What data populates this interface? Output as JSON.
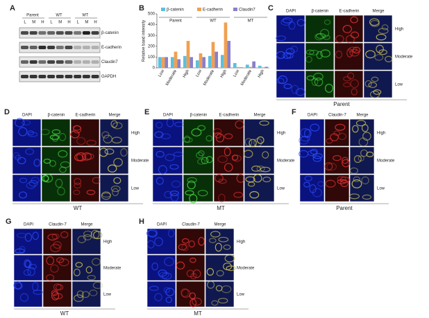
{
  "blot": {
    "label": "A",
    "groups": [
      "Parent",
      "WT",
      "MT"
    ],
    "lanes": [
      "L",
      "M",
      "H",
      "L",
      "M",
      "H",
      "L",
      "M",
      "H"
    ],
    "rows": [
      "β-catenin",
      "E-cadherin",
      "Claudin7",
      "GAPDH"
    ]
  },
  "chart_data": {
    "type": "bar",
    "label": "B",
    "y_label": "Relative band intensity",
    "groups": [
      "Parent",
      "WT",
      "MT"
    ],
    "categories": [
      "Low",
      "Moderate",
      "High",
      "Low",
      "Moderate",
      "High",
      "Low",
      "Moderate",
      "High"
    ],
    "series": [
      {
        "name": "β-catenin",
        "color": "#5bc0de",
        "values": [
          100,
          100,
          110,
          70,
          110,
          120,
          45,
          30,
          20
        ]
      },
      {
        "name": "E-cadherin",
        "color": "#f0a050",
        "values": [
          100,
          150,
          250,
          135,
          240,
          420,
          8,
          10,
          5
        ]
      },
      {
        "name": "Claudin7",
        "color": "#8a7fc8",
        "values": [
          100,
          80,
          100,
          100,
          150,
          250,
          5,
          60,
          10
        ]
      }
    ],
    "ylim": [
      0,
      500
    ],
    "yticks": [
      0,
      100,
      200,
      300,
      400,
      500
    ]
  },
  "micrographs": [
    {
      "label": "C",
      "columns": [
        "DAPI",
        "β-catenin",
        "E-cadherin",
        "Merge"
      ],
      "rows": [
        "High",
        "Moderate",
        "Low"
      ],
      "caption": "Parent"
    },
    {
      "label": "D",
      "columns": [
        "DAPI",
        "β-catenin",
        "E-cadherin",
        "Merge"
      ],
      "rows": [
        "High",
        "Moderate",
        "Low"
      ],
      "caption": "WT"
    },
    {
      "label": "E",
      "columns": [
        "DAPI",
        "β-catenin",
        "E-cadherin",
        "Merge"
      ],
      "rows": [
        "High",
        "Moderate",
        "Low"
      ],
      "caption": "MT"
    },
    {
      "label": "F",
      "columns": [
        "DAPI",
        "Claudin-7",
        "Merge"
      ],
      "rows": [
        "High",
        "Moderate",
        "Low"
      ],
      "caption": "Parent"
    },
    {
      "label": "G",
      "columns": [
        "DAPI",
        "Claudin-7",
        "Merge"
      ],
      "rows": [
        "High",
        "Moderate",
        "Low"
      ],
      "caption": "WT"
    },
    {
      "label": "H",
      "columns": [
        "DAPI",
        "Claudin-7",
        "Merge"
      ],
      "rows": [
        "High",
        "Moderate",
        "Low"
      ],
      "caption": "MT"
    }
  ]
}
